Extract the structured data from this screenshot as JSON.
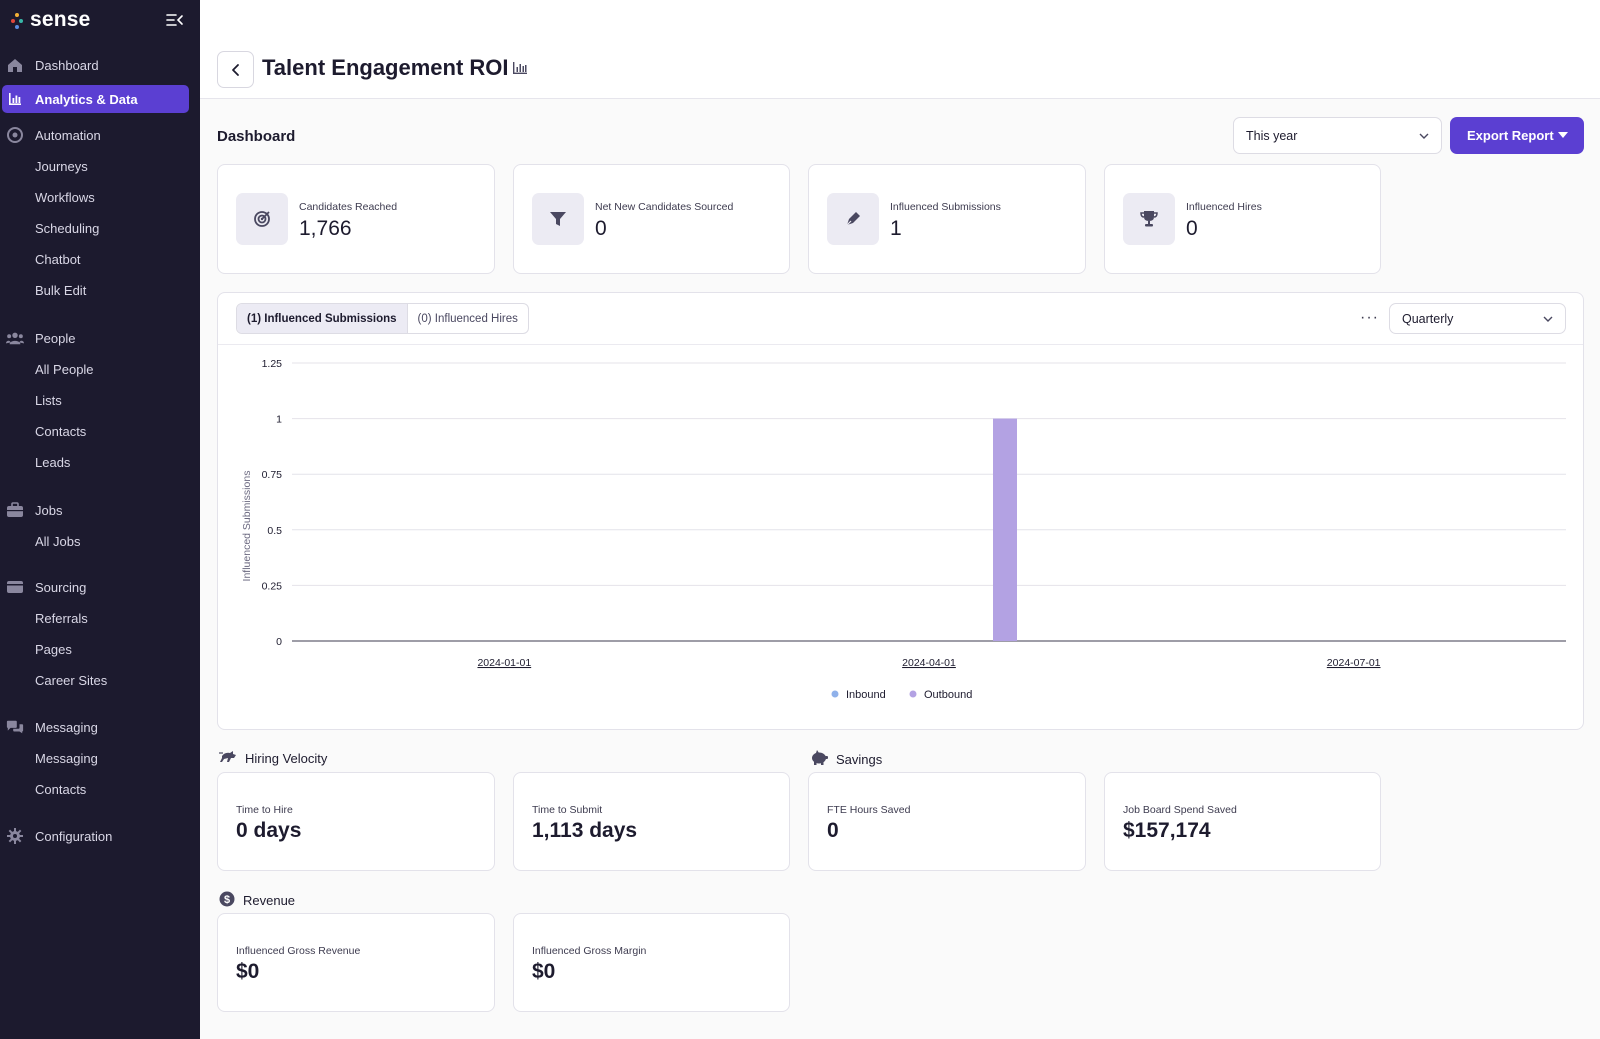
{
  "brand": {
    "name": "sense"
  },
  "sidebar": {
    "items": [
      {
        "label": "Dashboard",
        "icon": "home-icon",
        "type": "section"
      },
      {
        "label": "Analytics & Data",
        "icon": "bar-chart-icon",
        "type": "section",
        "active": true
      },
      {
        "label": "Automation",
        "icon": "automation-icon",
        "type": "section"
      },
      {
        "label": "Journeys",
        "type": "sub"
      },
      {
        "label": "Workflows",
        "type": "sub"
      },
      {
        "label": "Scheduling",
        "type": "sub"
      },
      {
        "label": "Chatbot",
        "type": "sub"
      },
      {
        "label": "Bulk Edit",
        "type": "sub"
      },
      {
        "label": "People",
        "icon": "people-icon",
        "type": "section"
      },
      {
        "label": "All People",
        "type": "sub"
      },
      {
        "label": "Lists",
        "type": "sub"
      },
      {
        "label": "Contacts",
        "type": "sub"
      },
      {
        "label": "Leads",
        "type": "sub"
      },
      {
        "label": "Jobs",
        "icon": "briefcase-icon",
        "type": "section"
      },
      {
        "label": "All Jobs",
        "type": "sub"
      },
      {
        "label": "Sourcing",
        "icon": "sourcing-icon",
        "type": "section"
      },
      {
        "label": "Referrals",
        "type": "sub"
      },
      {
        "label": "Pages",
        "type": "sub"
      },
      {
        "label": "Career Sites",
        "type": "sub"
      },
      {
        "label": "Messaging",
        "icon": "chat-icon",
        "type": "section"
      },
      {
        "label": "Messaging",
        "type": "sub"
      },
      {
        "label": "Contacts",
        "type": "sub"
      },
      {
        "label": "Configuration",
        "icon": "gear-icon",
        "type": "section"
      }
    ]
  },
  "header": {
    "title": "Talent Engagement ROI"
  },
  "dashboard": {
    "title": "Dashboard",
    "date_range": "This year",
    "export_label": "Export Report"
  },
  "kpis": [
    {
      "label": "Candidates Reached",
      "value": "1,766",
      "icon": "target-icon"
    },
    {
      "label": "Net New Candidates Sourced",
      "value": "0",
      "icon": "filter-icon"
    },
    {
      "label": "Influenced Submissions",
      "value": "1",
      "icon": "pen-icon"
    },
    {
      "label": "Influenced Hires",
      "value": "0",
      "icon": "trophy-icon"
    }
  ],
  "chart_panel": {
    "tabs": [
      "(1) Influenced Submissions",
      "(0) Influenced Hires"
    ],
    "active_tab": 0,
    "more_label": "···",
    "interval": "Quarterly"
  },
  "chart_data": {
    "type": "bar",
    "ylabel": "Influenced Submissions",
    "xlabel": "",
    "ylim": [
      0,
      1.25
    ],
    "yticks": [
      "1.25",
      "1",
      "0.75",
      "0.5",
      "0.25",
      "0"
    ],
    "ytick_values": [
      1.25,
      1,
      0.75,
      0.5,
      0.25,
      0
    ],
    "xticks": [
      "2024-01-01",
      "2024-04-01",
      "2024-07-01"
    ],
    "categories": [
      "2024-01-01",
      "2024-04-01",
      "2024-07-01"
    ],
    "series": [
      {
        "name": "Inbound",
        "color": "#8fb1ea",
        "values": [
          0,
          0,
          0
        ]
      },
      {
        "name": "Outbound",
        "color": "#b3a2e3",
        "values": [
          0,
          1,
          0
        ]
      }
    ],
    "grid": true,
    "legend": "bottom-center"
  },
  "hiring_velocity": {
    "title": "Hiring Velocity",
    "metrics": [
      {
        "label": "Time to Hire",
        "value": "0 days"
      },
      {
        "label": "Time to Submit",
        "value": "1,113 days"
      }
    ]
  },
  "savings": {
    "title": "Savings",
    "metrics": [
      {
        "label": "FTE Hours Saved",
        "value": "0"
      },
      {
        "label": "Job Board Spend Saved",
        "value": "$157,174"
      }
    ]
  },
  "revenue": {
    "title": "Revenue",
    "metrics": [
      {
        "label": "Influenced Gross Revenue",
        "value": "$0"
      },
      {
        "label": "Influenced Gross Margin",
        "value": "$0"
      }
    ]
  },
  "colors": {
    "sidebar_bg": "#1c1a2e",
    "accent": "#5b3fd2",
    "bar": "#b3a2e3",
    "inbound": "#8fb1ea"
  }
}
